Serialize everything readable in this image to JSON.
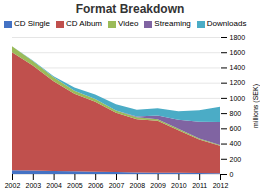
{
  "chart_data": {
    "type": "area",
    "stacked": true,
    "title": "Format Breakdown",
    "ylabel": "millions (SEK)",
    "x": [
      2002,
      2003,
      2004,
      2005,
      2006,
      2007,
      2008,
      2009,
      2010,
      2011,
      2012
    ],
    "xlim": [
      2002,
      2012
    ],
    "xticks": [
      2002,
      2003,
      2004,
      2005,
      2006,
      2007,
      2008,
      2009,
      2010,
      2011,
      2012
    ],
    "ylim": [
      0,
      1800
    ],
    "yticks": [
      0,
      200,
      400,
      600,
      800,
      1000,
      1200,
      1400,
      1600,
      1800
    ],
    "grid": true,
    "legend": "upper left",
    "series": [
      {
        "name": "CD Single",
        "color": "#4472c4",
        "values": [
          50,
          45,
          40,
          35,
          30,
          25,
          20,
          18,
          15,
          12,
          10
        ]
      },
      {
        "name": "CD Album",
        "color": "#c0504d",
        "values": [
          1550,
          1380,
          1180,
          1020,
          920,
          780,
          700,
          680,
          560,
          440,
          360
        ]
      },
      {
        "name": "Video",
        "color": "#9bbb59",
        "values": [
          80,
          60,
          50,
          40,
          35,
          30,
          25,
          20,
          18,
          15,
          12
        ]
      },
      {
        "name": "Streaming",
        "color": "#8064a2",
        "values": [
          0,
          0,
          0,
          0,
          0,
          0,
          10,
          50,
          120,
          220,
          300
        ]
      },
      {
        "name": "Downloads",
        "color": "#4bacc6",
        "values": [
          0,
          5,
          15,
          40,
          60,
          80,
          90,
          95,
          110,
          150,
          200
        ]
      }
    ]
  }
}
